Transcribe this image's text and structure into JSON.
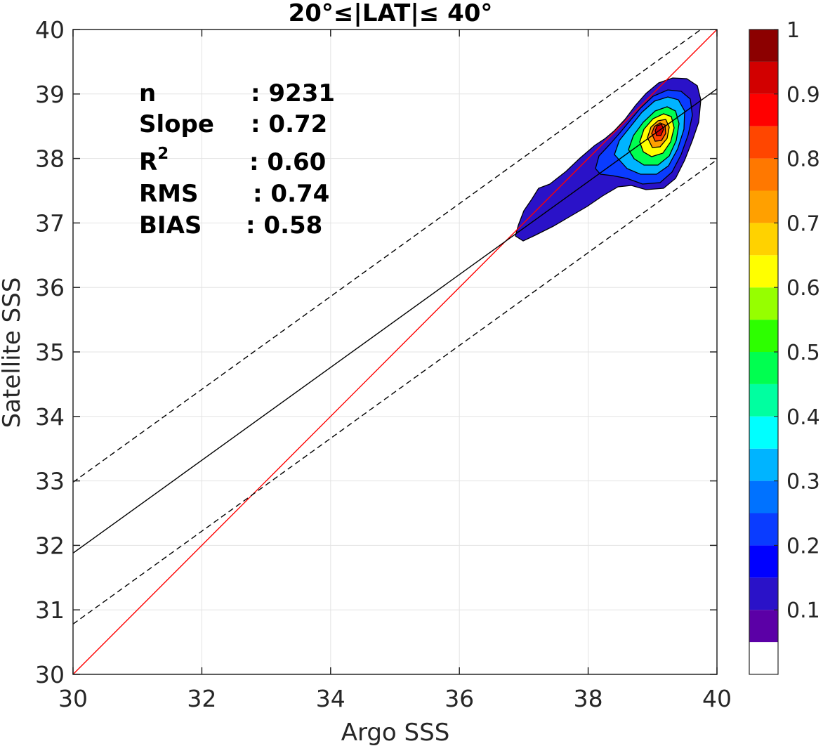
{
  "chart_data": {
    "type": "contour",
    "title": "20°≤|LAT|≤ 40°",
    "xlabel": "Argo SSS",
    "ylabel": "Satellite SSS",
    "xlim": [
      30,
      40
    ],
    "ylim": [
      30,
      40
    ],
    "xticks": [
      "30",
      "32",
      "34",
      "36",
      "38",
      "40"
    ],
    "yticks": [
      "30",
      "31",
      "32",
      "33",
      "34",
      "35",
      "36",
      "37",
      "38",
      "39",
      "40"
    ],
    "grid": true,
    "stats": {
      "n_label": "n",
      "n_value": ": 9231",
      "slope_label": "Slope",
      "slope_value": ": 0.72",
      "r2_label": "R",
      "r2_sup": "2",
      "r2_value": ": 0.60",
      "rms_label": "RMS",
      "rms_value": ": 0.74",
      "bias_label": "BIAS",
      "bias_value": ": 0.58"
    },
    "lines": [
      {
        "role": "identity",
        "color": "#ff0000",
        "style": "solid",
        "x": [
          30,
          40
        ],
        "y": [
          30,
          40
        ]
      },
      {
        "role": "regression",
        "color": "#000000",
        "style": "solid",
        "x": [
          30,
          40
        ],
        "y": [
          31.88,
          39.08
        ]
      },
      {
        "role": "upper-bound",
        "color": "#000000",
        "style": "dashed",
        "x": [
          30,
          40
        ],
        "y": [
          32.98,
          40.18
        ]
      },
      {
        "role": "lower-bound",
        "color": "#000000",
        "style": "dashed",
        "x": [
          30,
          40
        ],
        "y": [
          30.78,
          37.98
        ]
      }
    ],
    "contour_peak": {
      "x": 39.1,
      "y": 38.45
    },
    "colorbar": {
      "ticks": [
        "0.1",
        "0.2",
        "0.3",
        "0.4",
        "0.5",
        "0.6",
        "0.7",
        "0.8",
        "0.9",
        "1"
      ],
      "tick_values": [
        0.1,
        0.2,
        0.3,
        0.4,
        0.5,
        0.6,
        0.7,
        0.8,
        0.9,
        1.0
      ],
      "min": 0,
      "max": 1,
      "bands": [
        {
          "from": 0.0,
          "to": 0.05,
          "color": "#ffffff"
        },
        {
          "from": 0.05,
          "to": 0.1,
          "color": "#5b00a6"
        },
        {
          "from": 0.1,
          "to": 0.15,
          "color": "#2a12c8"
        },
        {
          "from": 0.15,
          "to": 0.2,
          "color": "#0000ff"
        },
        {
          "from": 0.2,
          "to": 0.25,
          "color": "#0a3cff"
        },
        {
          "from": 0.25,
          "to": 0.3,
          "color": "#0072ff"
        },
        {
          "from": 0.3,
          "to": 0.35,
          "color": "#00b4ff"
        },
        {
          "from": 0.35,
          "to": 0.4,
          "color": "#00ffff"
        },
        {
          "from": 0.4,
          "to": 0.45,
          "color": "#00ffa0"
        },
        {
          "from": 0.45,
          "to": 0.5,
          "color": "#00ff50"
        },
        {
          "from": 0.5,
          "to": 0.55,
          "color": "#2dff00"
        },
        {
          "from": 0.55,
          "to": 0.6,
          "color": "#96ff00"
        },
        {
          "from": 0.6,
          "to": 0.65,
          "color": "#ffff00"
        },
        {
          "from": 0.65,
          "to": 0.7,
          "color": "#ffd200"
        },
        {
          "from": 0.7,
          "to": 0.75,
          "color": "#ffa000"
        },
        {
          "from": 0.75,
          "to": 0.8,
          "color": "#ff7800"
        },
        {
          "from": 0.8,
          "to": 0.85,
          "color": "#ff4600"
        },
        {
          "from": 0.85,
          "to": 0.9,
          "color": "#ff0000"
        },
        {
          "from": 0.9,
          "to": 0.95,
          "color": "#d20000"
        },
        {
          "from": 0.95,
          "to": 1.0,
          "color": "#8c0000"
        }
      ]
    }
  }
}
